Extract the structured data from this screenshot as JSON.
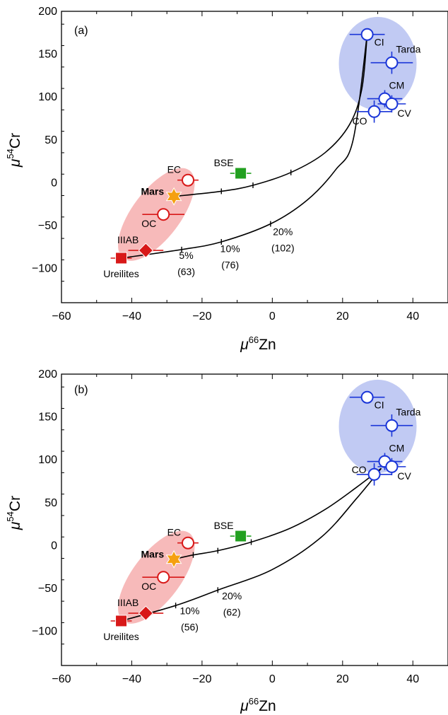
{
  "chart_data": [
    {
      "type": "scatter",
      "panel_label": "(a)",
      "xlabel_symbol": "μ",
      "xlabel_mass": "66",
      "xlabel_element": "Zn",
      "ylabel_symbol": "μ",
      "ylabel_mass": "54",
      "ylabel_element": "Cr",
      "xlim": [
        -60,
        50
      ],
      "ylim": [
        -140,
        200
      ],
      "xticks": [
        -60,
        -40,
        -20,
        0,
        20,
        40
      ],
      "yticks": [
        -100,
        -50,
        0,
        50,
        100,
        150,
        200
      ],
      "groups": [
        {
          "name": "inner",
          "color": "#f4a0a0",
          "center": [
            -33,
            -37
          ],
          "radii": [
            8,
            47
          ],
          "angle": -64
        },
        {
          "name": "outer",
          "color": "#a9b6ef",
          "center": [
            30,
            139
          ],
          "radii": [
            11,
            57
          ],
          "angle": 0
        }
      ],
      "points": [
        {
          "label": "CI",
          "x": 27,
          "y": 173,
          "xerr": 5,
          "yerr": 0,
          "marker": "open-circle",
          "color": "#1a35d8",
          "label_pos": "right-below"
        },
        {
          "label": "Tarda",
          "x": 34,
          "y": 140,
          "xerr": 6,
          "yerr": 13,
          "marker": "open-circle",
          "color": "#1a35d8",
          "label_pos": "above-right"
        },
        {
          "label": "CM",
          "x": 32,
          "y": 98,
          "xerr": 5,
          "yerr": 10,
          "marker": "open-circle",
          "color": "#1a35d8",
          "label_pos": "above-right"
        },
        {
          "label": "CV",
          "x": 34,
          "y": 92,
          "xerr": 4,
          "yerr": 10,
          "marker": "open-circle",
          "color": "#1a35d8",
          "label_pos": "below-right"
        },
        {
          "label": "CO",
          "x": 29,
          "y": 83,
          "xerr": 5,
          "yerr": 13,
          "marker": "open-circle",
          "color": "#1a35d8",
          "label_pos": "below-left"
        },
        {
          "label": "EC",
          "x": -24,
          "y": 3,
          "xerr": 3,
          "yerr": 0,
          "marker": "open-circle",
          "color": "#d81818",
          "label_pos": "above-left"
        },
        {
          "label": "OC",
          "x": -31,
          "y": -37,
          "xerr": 6,
          "yerr": 0,
          "marker": "open-circle",
          "color": "#d81818",
          "label_pos": "below-left"
        },
        {
          "label": "Mars",
          "x": -28,
          "y": -16,
          "xerr": 0,
          "yerr": 10,
          "marker": "star",
          "color": "#f5a010",
          "label_pos": "left-bold"
        },
        {
          "label": "IIIAB",
          "x": -36,
          "y": -79,
          "xerr": 5,
          "yerr": 0,
          "marker": "diamond",
          "color": "#d81818",
          "label_pos": "above-left"
        },
        {
          "label": "Ureilites",
          "x": -43,
          "y": -88,
          "xerr": 3,
          "yerr": 0,
          "marker": "square",
          "color": "#d81818",
          "label_pos": "below"
        },
        {
          "label": "BSE",
          "x": -9,
          "y": 11,
          "xerr": 3,
          "yerr": 0,
          "marker": "square",
          "color": "#22a020",
          "label_pos": "above-left"
        }
      ],
      "mixing_curves": [
        {
          "points": [
            [
              -28,
              -16
            ],
            [
              -14.5,
              -10
            ],
            [
              -5.5,
              -3
            ],
            [
              5.3,
              12
            ],
            [
              15,
              35
            ],
            [
              22,
              68
            ],
            [
              25.5,
              110
            ],
            [
              27,
              173
            ]
          ],
          "ticks": [
            [
              -14.5,
              -10
            ],
            [
              -5.5,
              -3
            ],
            [
              5.3,
              12
            ]
          ]
        },
        {
          "points": [
            [
              -43,
              -88
            ],
            [
              -25.8,
              -78
            ],
            [
              -14.5,
              -69
            ],
            [
              -0.5,
              -48
            ],
            [
              10,
              -20
            ],
            [
              18,
              15
            ],
            [
              23,
              50
            ],
            [
              27,
              173
            ]
          ],
          "ticks": [
            [
              -25.8,
              -78
            ],
            [
              -14.5,
              -69
            ],
            [
              -0.5,
              -48
            ]
          ]
        }
      ],
      "annotations": [
        {
          "text": "5%",
          "x": -24.5,
          "y": -89
        },
        {
          "text": "(63)",
          "x": -24.5,
          "y": -108
        },
        {
          "text": "10%",
          "x": -12,
          "y": -81
        },
        {
          "text": "(76)",
          "x": -12,
          "y": -100
        },
        {
          "text": "20%",
          "x": 3,
          "y": -61
        },
        {
          "text": "(102)",
          "x": 3,
          "y": -80
        }
      ]
    },
    {
      "type": "scatter",
      "panel_label": "(b)",
      "xlabel_symbol": "μ",
      "xlabel_mass": "66",
      "xlabel_element": "Zn",
      "ylabel_symbol": "μ",
      "ylabel_mass": "54",
      "ylabel_element": "Cr",
      "xlim": [
        -60,
        50
      ],
      "ylim": [
        -140,
        200
      ],
      "xticks": [
        -60,
        -40,
        -20,
        0,
        20,
        40
      ],
      "yticks": [
        -100,
        -50,
        0,
        50,
        100,
        150,
        200
      ],
      "groups": [
        {
          "name": "inner",
          "color": "#f4a0a0",
          "center": [
            -33,
            -37
          ],
          "radii": [
            8,
            47
          ],
          "angle": -64
        },
        {
          "name": "outer",
          "color": "#a9b6ef",
          "center": [
            30,
            139
          ],
          "radii": [
            11,
            57
          ],
          "angle": 0
        }
      ],
      "points": [
        {
          "label": "CI",
          "x": 27,
          "y": 173,
          "xerr": 5,
          "yerr": 0,
          "marker": "open-circle",
          "color": "#1a35d8",
          "label_pos": "right-below"
        },
        {
          "label": "Tarda",
          "x": 34,
          "y": 140,
          "xerr": 6,
          "yerr": 13,
          "marker": "open-circle",
          "color": "#1a35d8",
          "label_pos": "above-right"
        },
        {
          "label": "CM",
          "x": 32,
          "y": 98,
          "xerr": 5,
          "yerr": 10,
          "marker": "open-circle",
          "color": "#1a35d8",
          "label_pos": "above-right"
        },
        {
          "label": "CV",
          "x": 34,
          "y": 92,
          "xerr": 4,
          "yerr": 10,
          "marker": "open-circle",
          "color": "#1a35d8",
          "label_pos": "below-right"
        },
        {
          "label": "CO",
          "x": 29,
          "y": 83,
          "xerr": 5,
          "yerr": 13,
          "marker": "open-circle",
          "color": "#1a35d8",
          "label_pos": "left"
        },
        {
          "label": "EC",
          "x": -24,
          "y": 3,
          "xerr": 3,
          "yerr": 0,
          "marker": "open-circle",
          "color": "#d81818",
          "label_pos": "above-left"
        },
        {
          "label": "OC",
          "x": -31,
          "y": -37,
          "xerr": 6,
          "yerr": 0,
          "marker": "open-circle",
          "color": "#d81818",
          "label_pos": "below-left"
        },
        {
          "label": "Mars",
          "x": -28,
          "y": -16,
          "xerr": 0,
          "yerr": 10,
          "marker": "star",
          "color": "#f5a010",
          "label_pos": "left-bold"
        },
        {
          "label": "IIIAB",
          "x": -36,
          "y": -79,
          "xerr": 5,
          "yerr": 0,
          "marker": "diamond",
          "color": "#d81818",
          "label_pos": "above-left"
        },
        {
          "label": "Ureilites",
          "x": -43,
          "y": -88,
          "xerr": 3,
          "yerr": 0,
          "marker": "square",
          "color": "#d81818",
          "label_pos": "below"
        },
        {
          "label": "BSE",
          "x": -9,
          "y": 11,
          "xerr": 3,
          "yerr": 0,
          "marker": "square",
          "color": "#22a020",
          "label_pos": "above-left"
        }
      ],
      "mixing_curves": [
        {
          "points": [
            [
              -28,
              -16
            ],
            [
              -22.5,
              -11
            ],
            [
              -15.5,
              -6
            ],
            [
              -6,
              4
            ],
            [
              5,
              20
            ],
            [
              15,
              42
            ],
            [
              24,
              68
            ],
            [
              31,
              90
            ]
          ],
          "ticks": [
            [
              -22.5,
              -11
            ],
            [
              -15.5,
              -6
            ],
            [
              -6,
              4
            ]
          ]
        },
        {
          "points": [
            [
              -43,
              -88
            ],
            [
              -27.5,
              -70
            ],
            [
              -15.5,
              -52
            ],
            [
              0,
              -28
            ],
            [
              14,
              10
            ],
            [
              24,
              55
            ],
            [
              31,
              90
            ]
          ],
          "ticks": [
            [
              -27.5,
              -70
            ],
            [
              -15.5,
              -52
            ]
          ]
        }
      ],
      "annotations": [
        {
          "text": "10%",
          "x": -23.5,
          "y": -80
        },
        {
          "text": "(56)",
          "x": -23.5,
          "y": -99
        },
        {
          "text": "20%",
          "x": -11.5,
          "y": -63
        },
        {
          "text": "(62)",
          "x": -11.5,
          "y": -82
        }
      ]
    }
  ]
}
